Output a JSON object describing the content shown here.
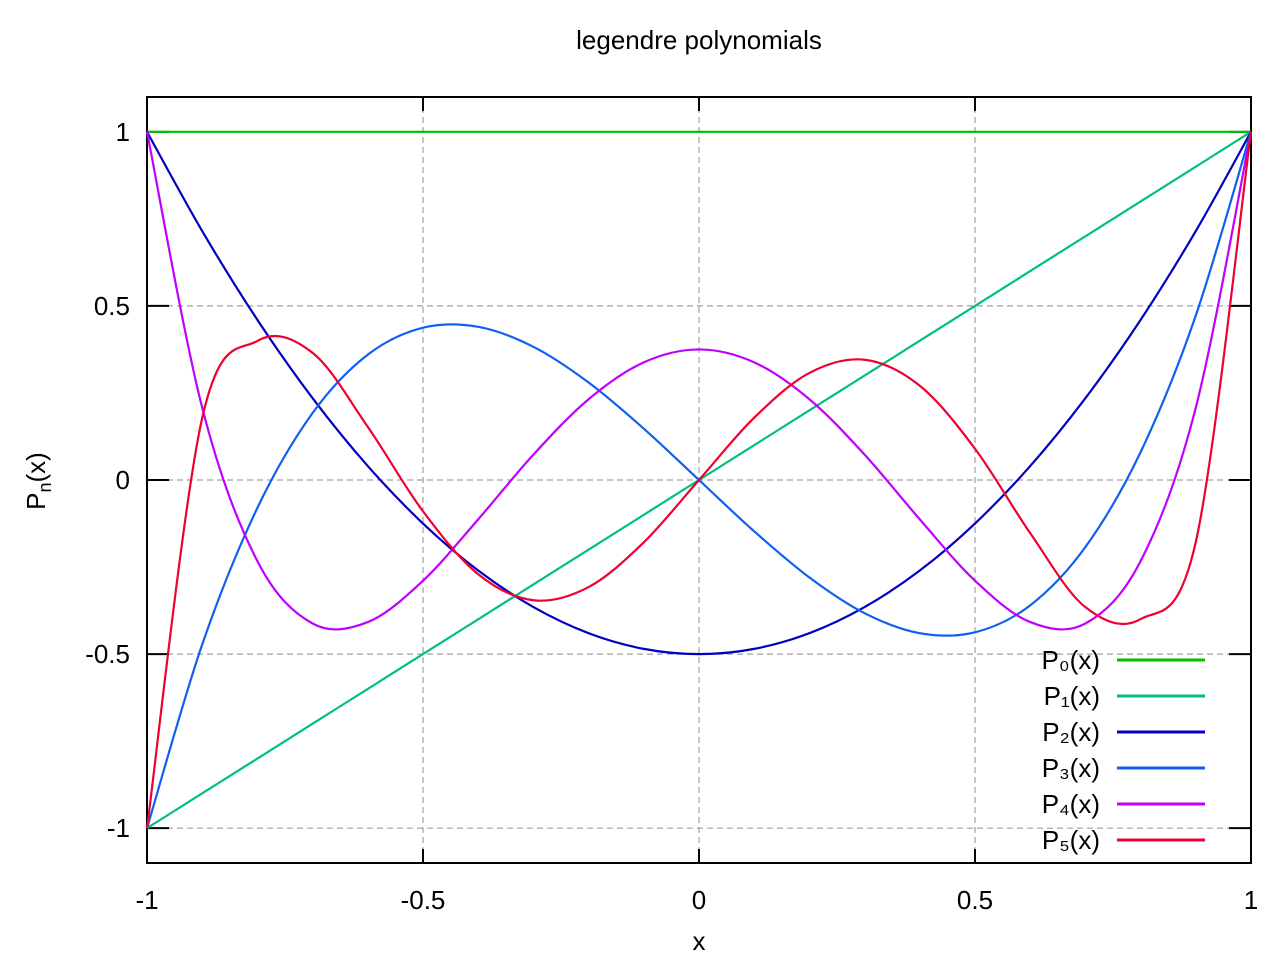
{
  "chart_data": {
    "type": "line",
    "title": "legendre polynomials",
    "xlabel": "x",
    "ylabel": {
      "base": "P",
      "sub": "n",
      "rest": "(x)"
    },
    "xlim": [
      -1,
      1
    ],
    "ylim": [
      -1.1,
      1.1
    ],
    "xticks": [
      -1,
      -0.5,
      0,
      0.5,
      1
    ],
    "xtick_labels": [
      "-1",
      "-0.5",
      "0",
      "0.5",
      "1"
    ],
    "yticks": [
      -1,
      -0.5,
      0,
      0.5,
      1
    ],
    "ytick_labels": [
      "-1",
      "-0.5",
      "0",
      "0.5",
      "1"
    ],
    "grid": true,
    "legend_position": "bottom-right",
    "x": [
      -1,
      -0.9,
      -0.8,
      -0.7,
      -0.6,
      -0.5,
      -0.4,
      -0.3,
      -0.2,
      -0.1,
      0,
      0.1,
      0.2,
      0.3,
      0.4,
      0.5,
      0.6,
      0.7,
      0.8,
      0.9,
      1
    ],
    "series": [
      {
        "name": "P₀(x)",
        "color": "#00c000",
        "values": [
          1,
          1,
          1,
          1,
          1,
          1,
          1,
          1,
          1,
          1,
          1,
          1,
          1,
          1,
          1,
          1,
          1,
          1,
          1,
          1,
          1
        ]
      },
      {
        "name": "P₁(x)",
        "color": "#00c080",
        "values": [
          -1,
          -0.9,
          -0.8,
          -0.7,
          -0.6,
          -0.5,
          -0.4,
          -0.3,
          -0.2,
          -0.1,
          0,
          0.1,
          0.2,
          0.3,
          0.4,
          0.5,
          0.6,
          0.7,
          0.8,
          0.9,
          1
        ]
      },
      {
        "name": "P₂(x)",
        "color": "#0000c0",
        "values": [
          1,
          0.715,
          0.46,
          0.235,
          0.04,
          -0.125,
          -0.26,
          -0.365,
          -0.44,
          -0.485,
          -0.5,
          -0.485,
          -0.44,
          -0.365,
          -0.26,
          -0.125,
          0.04,
          0.235,
          0.46,
          0.715,
          1
        ]
      },
      {
        "name": "P₃(x)",
        "color": "#1060f0",
        "values": [
          -1,
          -0.4725,
          -0.08,
          0.1925,
          0.36,
          0.4375,
          0.44,
          0.3825,
          0.28,
          0.1475,
          0,
          -0.1475,
          -0.28,
          -0.3825,
          -0.44,
          -0.4375,
          -0.36,
          -0.1925,
          0.08,
          0.4725,
          1
        ]
      },
      {
        "name": "P₄(x)",
        "color": "#c000ff",
        "values": [
          1,
          0.2079,
          -0.233,
          -0.4121,
          -0.408,
          -0.2891,
          -0.113,
          0.0729,
          0.232,
          0.3379,
          0.375,
          0.3379,
          0.232,
          0.0729,
          -0.113,
          -0.2891,
          -0.408,
          -0.4121,
          -0.233,
          0.2079,
          1
        ]
      },
      {
        "name": "P₅(x)",
        "color": "#f00030",
        "values": [
          -1,
          0.178,
          0.3995,
          0.3652,
          0.1526,
          -0.0898,
          -0.2706,
          -0.3454,
          -0.3075,
          -0.1789,
          0,
          0.1789,
          0.3075,
          0.3454,
          0.2706,
          0.0898,
          -0.1526,
          -0.3652,
          -0.3995,
          -0.178,
          1
        ]
      }
    ]
  }
}
